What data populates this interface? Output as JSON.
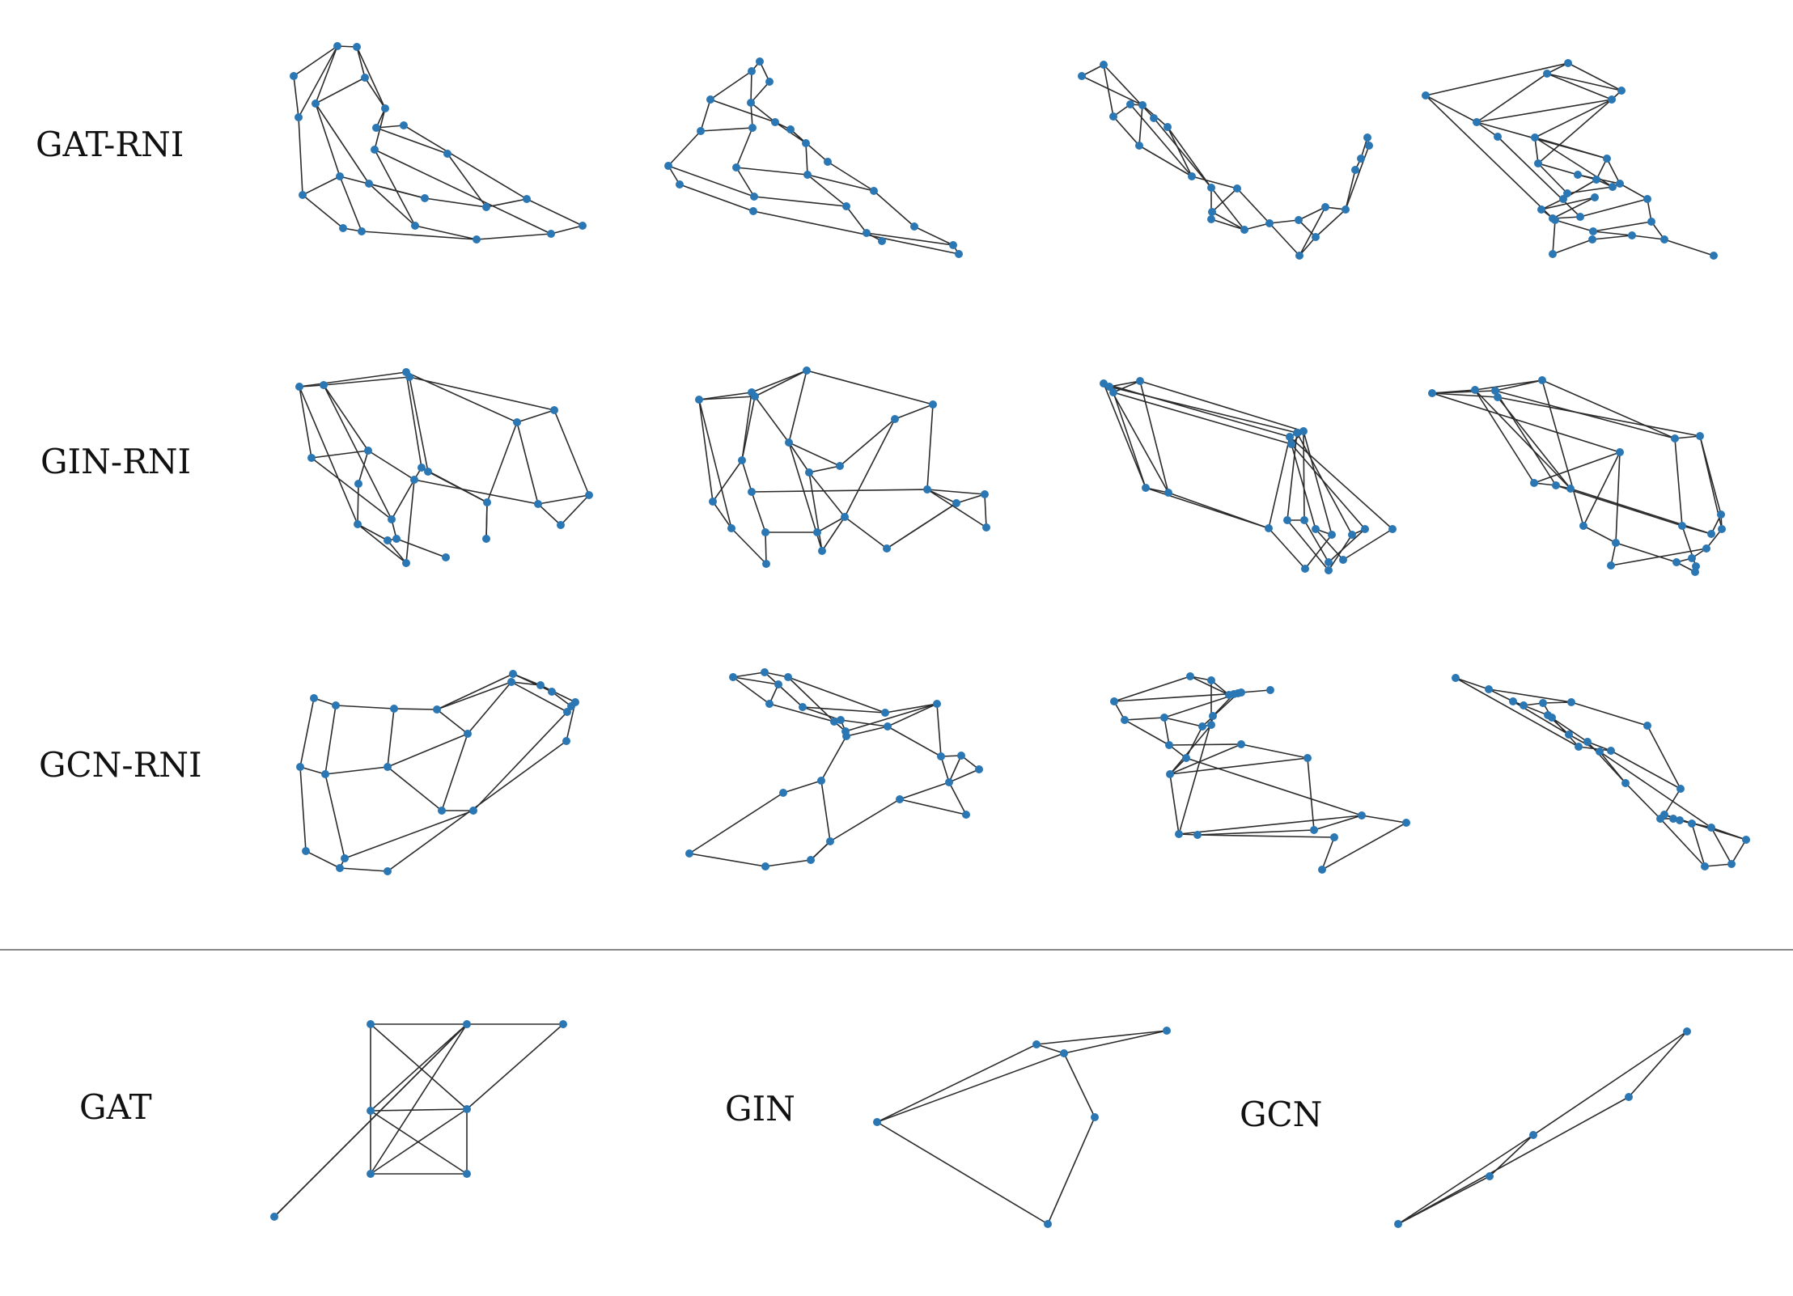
{
  "labels": {
    "gat_rni": "GAT-RNI",
    "gin_rni": "GIN-RNI",
    "gcn_rni": "GCN-RNI",
    "gat": "GAT",
    "gin": "GIN",
    "gcn": "GCN"
  },
  "colors": {
    "node": "#2a77b4",
    "edge": "#2b2b2b",
    "divider": "#888888"
  }
}
